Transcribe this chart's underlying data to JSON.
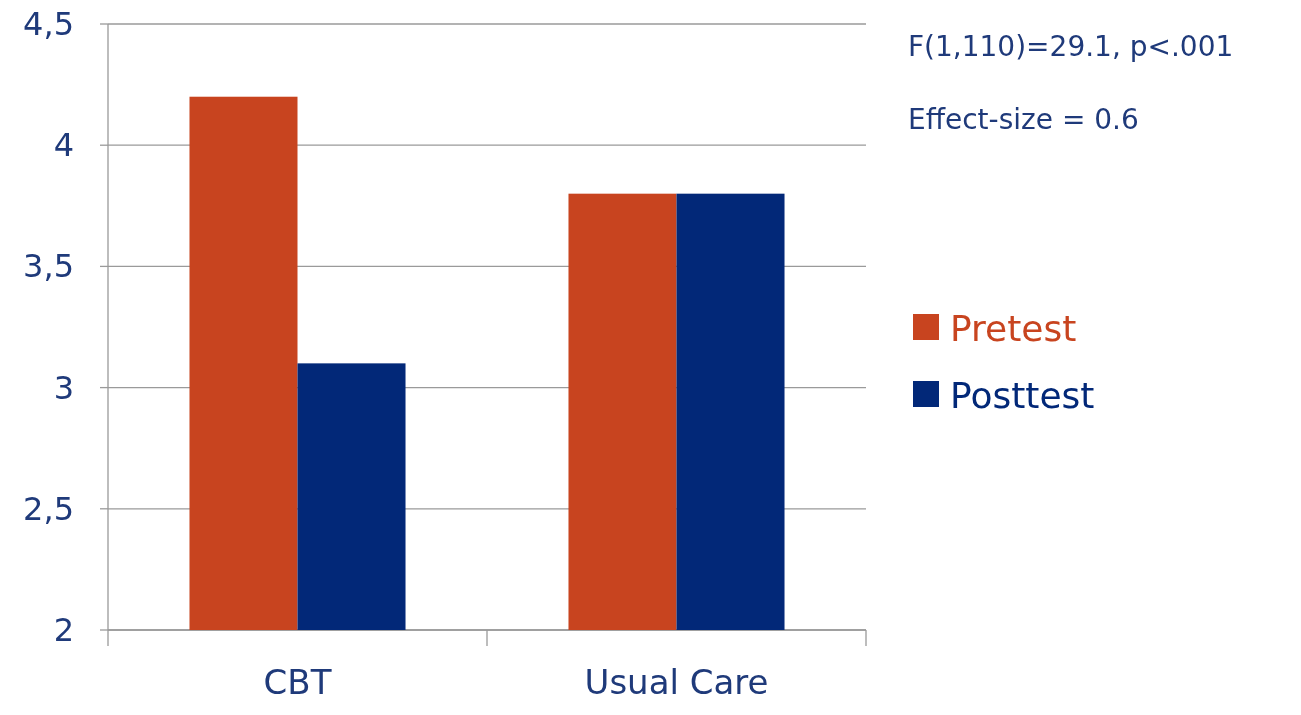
{
  "chart_data": {
    "type": "bar",
    "categories": [
      "CBT",
      "Usual Care"
    ],
    "series": [
      {
        "name": "Pretest",
        "color": "#c8441f",
        "values": [
          4.2,
          3.8
        ]
      },
      {
        "name": "Posttest",
        "color": "#022878",
        "values": [
          3.1,
          3.8
        ]
      }
    ],
    "ylim": [
      2,
      4.5
    ],
    "yticks": [
      2,
      {
        "value": 2.5,
        "label": "2,5"
      },
      3,
      {
        "value": 3.5,
        "label": "3,5"
      },
      4,
      {
        "value": 4.5,
        "label": "4,5"
      }
    ],
    "grid": "y",
    "legend": "right",
    "annotations": [
      "F(1,110)=29.1, p<.001",
      "Effect-size = 0.6"
    ]
  }
}
